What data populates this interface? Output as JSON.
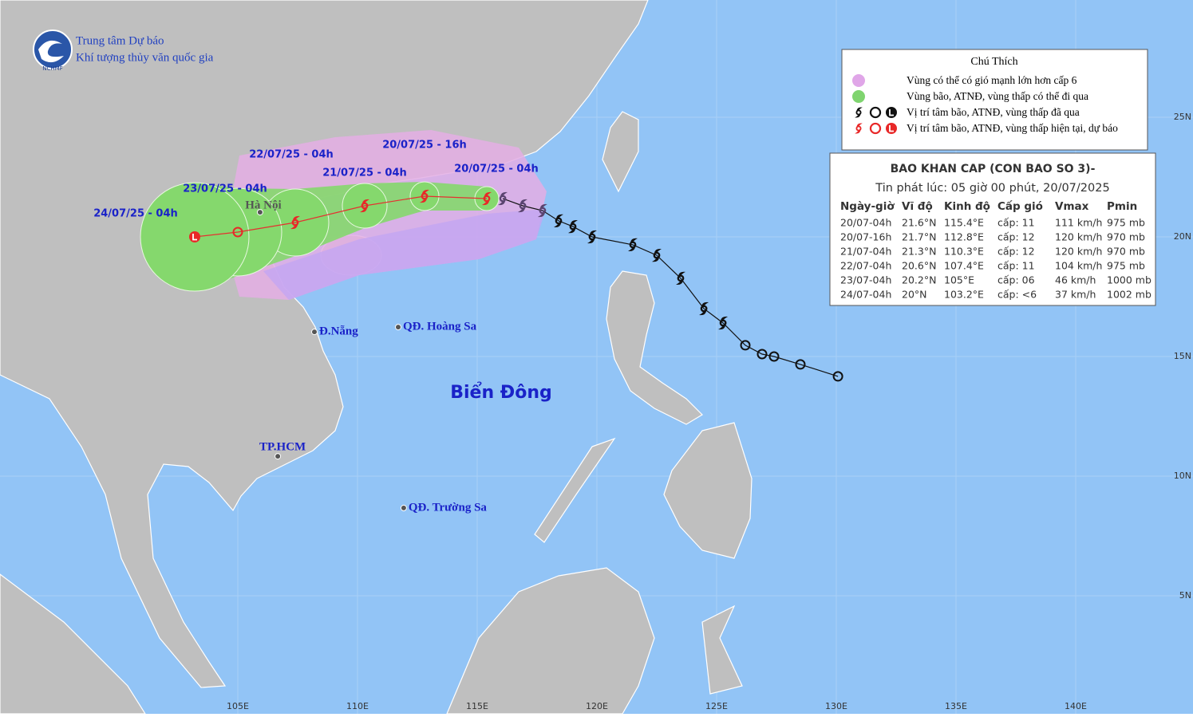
{
  "header": {
    "org": [
      "Trung tâm Dự báo",
      "Khí tượng thủy văn quốc gia"
    ],
    "logo": "NCHMF"
  },
  "legend": {
    "title": "Chú Thích",
    "items": [
      "Vùng có thể có gió mạnh lớn hơn cấp 6",
      "Vùng bão, ATNĐ, vùng thấp có thể đi qua",
      "Vị trí tâm bão, ATNĐ, vùng thấp đã qua",
      "Vị trí tâm bão, ATNĐ, vùng thấp hiện tại, dự báo"
    ]
  },
  "bulletin": {
    "title": "BAO KHAN CAP (CON BAO SO 3)-",
    "issued": "Tin phát lúc: 05 giờ 00 phút, 20/07/2025",
    "columns": [
      "Ngày-giờ",
      "Vĩ độ",
      "Kinh độ",
      "Cấp gió",
      "Vmax",
      "Pmin"
    ],
    "rows": [
      [
        "20/07-04h",
        "21.6°N",
        "115.4°E",
        "cấp: 11",
        "111 km/h",
        "975 mb"
      ],
      [
        "20/07-16h",
        "21.7°N",
        "112.8°E",
        "cấp: 12",
        "120 km/h",
        "970 mb"
      ],
      [
        "21/07-04h",
        "21.3°N",
        "110.3°E",
        "cấp: 12",
        "120 km/h",
        "970 mb"
      ],
      [
        "22/07-04h",
        "20.6°N",
        "107.4°E",
        "cấp: 11",
        "104 km/h",
        "975 mb"
      ],
      [
        "23/07-04h",
        "20.2°N",
        "105°E",
        "cấp: 06",
        "46 km/h",
        "1000 mb"
      ],
      [
        "24/07-04h",
        "20°N",
        "103.2°E",
        "cấp: <6",
        "37 km/h",
        "1002 mb"
      ]
    ]
  },
  "map": {
    "lon_ticks": [
      {
        "value": 105,
        "label": "105E"
      },
      {
        "value": 110,
        "label": "110E"
      },
      {
        "value": 115,
        "label": "115E"
      },
      {
        "value": 120,
        "label": "120E"
      },
      {
        "value": 125,
        "label": "125E"
      },
      {
        "value": 130,
        "label": "130E"
      },
      {
        "value": 135,
        "label": "135E"
      },
      {
        "value": 140,
        "label": "140E"
      }
    ],
    "lat_ticks": [
      {
        "value": 5,
        "label": "5N"
      },
      {
        "value": 10,
        "label": "10N"
      },
      {
        "value": 15,
        "label": "15N"
      },
      {
        "value": 20,
        "label": "20N"
      },
      {
        "value": 25,
        "label": "25N"
      }
    ],
    "past_track": [
      {
        "lon": 116.07,
        "lat": 21.6,
        "kind": "storm"
      },
      {
        "lon": 116.9,
        "lat": 21.3,
        "kind": "storm"
      },
      {
        "lon": 117.73,
        "lat": 21.1,
        "kind": "storm"
      },
      {
        "lon": 118.4,
        "lat": 20.67,
        "kind": "storm"
      },
      {
        "lon": 119.0,
        "lat": 20.43,
        "kind": "storm"
      },
      {
        "lon": 119.8,
        "lat": 20.0,
        "kind": "storm"
      },
      {
        "lon": 121.5,
        "lat": 19.67,
        "kind": "storm"
      },
      {
        "lon": 122.5,
        "lat": 19.23,
        "kind": "storm"
      },
      {
        "lon": 123.5,
        "lat": 18.27,
        "kind": "storm"
      },
      {
        "lon": 124.47,
        "lat": 17.0,
        "kind": "storm"
      },
      {
        "lon": 125.27,
        "lat": 16.4,
        "kind": "storm"
      },
      {
        "lon": 126.2,
        "lat": 15.47,
        "kind": "depression"
      },
      {
        "lon": 126.9,
        "lat": 15.1,
        "kind": "depression"
      },
      {
        "lon": 127.4,
        "lat": 15.0,
        "kind": "depression"
      },
      {
        "lon": 128.5,
        "lat": 14.67,
        "kind": "depression"
      },
      {
        "lon": 130.07,
        "lat": 14.17,
        "kind": "depression"
      }
    ],
    "forecast_track": [
      {
        "lon": 115.4,
        "lat": 21.6,
        "kind": "storm",
        "label": "20/07/25 - 04h"
      },
      {
        "lon": 112.8,
        "lat": 21.7,
        "kind": "storm",
        "label": "20/07/25 - 16h"
      },
      {
        "lon": 110.3,
        "lat": 21.3,
        "kind": "storm",
        "label": "21/07/25 - 04h"
      },
      {
        "lon": 107.4,
        "lat": 20.6,
        "kind": "storm",
        "label": "22/07/25 - 04h"
      },
      {
        "lon": 105,
        "lat": 20.2,
        "kind": "depression",
        "label": "23/07/25 - 04h"
      },
      {
        "lon": 103.2,
        "lat": 20,
        "kind": "low",
        "label": "24/07/25 - 04h"
      }
    ],
    "places": [
      {
        "name": "Hà Nội",
        "lon": 105.93,
        "lat": 21.03
      },
      {
        "name": "Đ.Nẵng",
        "lon": 108.2,
        "lat": 16.03
      },
      {
        "name": "QĐ. Hoàng Sa",
        "lon": 111.7,
        "lat": 16.23
      },
      {
        "name": "TP.HCM",
        "lon": 106.67,
        "lat": 10.83
      },
      {
        "name": "QĐ. Trường Sa",
        "lon": 111.93,
        "lat": 8.67
      }
    ],
    "sea_label": "Biển Đông"
  }
}
